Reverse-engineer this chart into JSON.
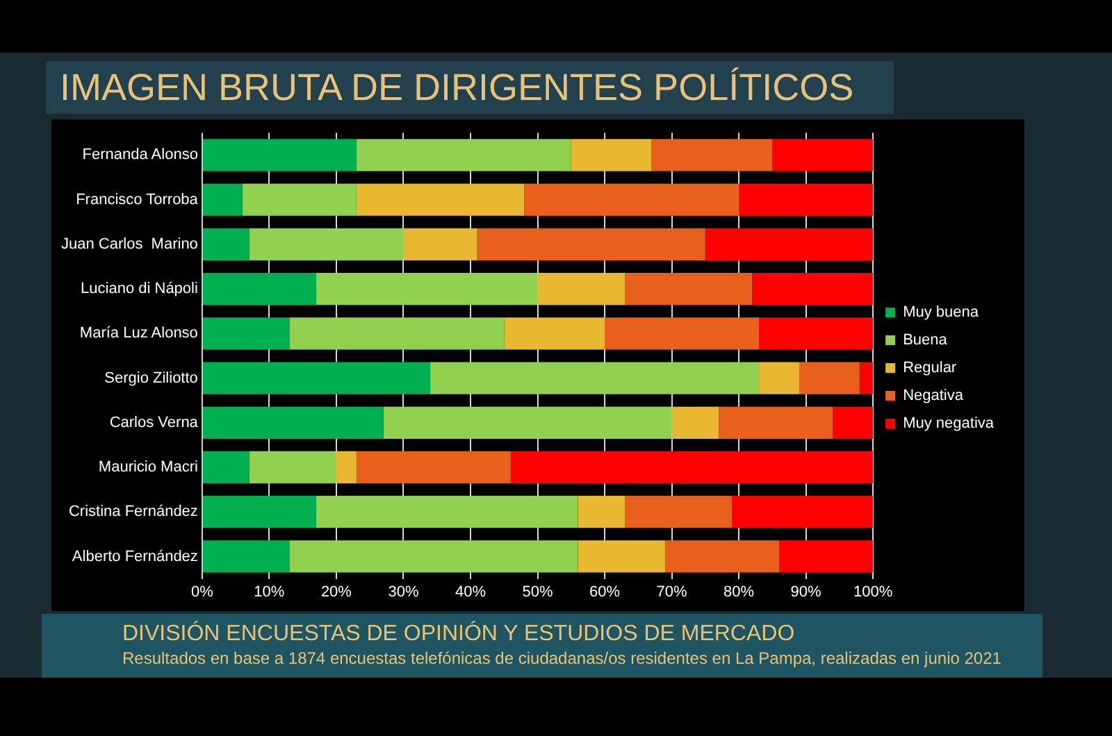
{
  "chart_data": {
    "type": "bar",
    "orientation": "horizontal",
    "stacked": true,
    "title": "IMAGEN BRUTA DE DIRIGENTES POLÍTICOS",
    "subtitle": "DIVISIÓN ENCUESTAS DE OPINIÓN Y ESTUDIOS DE MERCADO",
    "annotations": [
      "Resultados en base a 1874 encuestas telefónicas de ciudadanas/os residentes en La Pampa, realizadas en junio 2021"
    ],
    "categories": [
      "Fernanda Alonso",
      "Francisco Torroba",
      "Juan Carlos  Marino",
      "Luciano di Nápoli",
      "María Luz Alonso",
      "Sergio Ziliotto",
      "Carlos Verna",
      "Mauricio Macri",
      "Cristina Fernández",
      "Alberto Fernández"
    ],
    "series": [
      {
        "name": "Muy buena",
        "color": "#00b050",
        "values": [
          23,
          6,
          7,
          17,
          13,
          34,
          27,
          7,
          17,
          13
        ]
      },
      {
        "name": "Buena",
        "color": "#92d050",
        "values": [
          32,
          17,
          23,
          33,
          32,
          49,
          43,
          13,
          39,
          43
        ]
      },
      {
        "name": "Regular",
        "color": "#e8b830",
        "values": [
          12,
          25,
          11,
          13,
          15,
          6,
          7,
          3,
          7,
          13
        ]
      },
      {
        "name": "Negativa",
        "color": "#e8601c",
        "values": [
          18,
          32,
          34,
          19,
          23,
          9,
          17,
          23,
          16,
          17
        ]
      },
      {
        "name": "Muy negativa",
        "color": "#ff0000",
        "values": [
          15,
          20,
          25,
          18,
          17,
          2,
          6,
          54,
          21,
          14
        ]
      }
    ],
    "xlim": [
      0,
      100
    ],
    "xticks": [
      {
        "value": 0,
        "label": "0%"
      },
      {
        "value": 10,
        "label": "10%"
      },
      {
        "value": 20,
        "label": "20%"
      },
      {
        "value": 30,
        "label": "30%"
      },
      {
        "value": 40,
        "label": "40%"
      },
      {
        "value": 50,
        "label": "50%"
      },
      {
        "value": 60,
        "label": "60%"
      },
      {
        "value": 70,
        "label": "70%"
      },
      {
        "value": 80,
        "label": "80%"
      },
      {
        "value": 90,
        "label": "90%"
      },
      {
        "value": 100,
        "label": "100%"
      }
    ],
    "grid": "x",
    "legend": "right"
  }
}
